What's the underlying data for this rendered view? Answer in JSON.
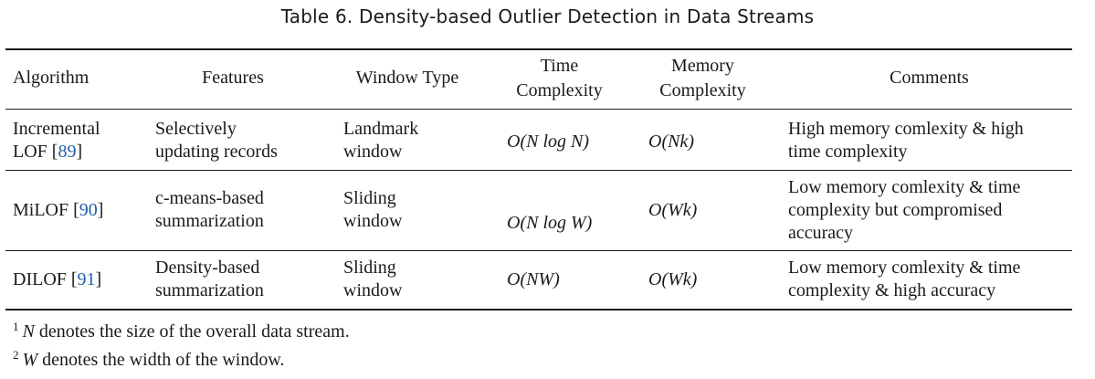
{
  "caption": "Table 6.  Density-based Outlier Detection in Data Streams",
  "headers": {
    "algorithm": "Algorithm",
    "features": "Features",
    "window_type": "Window Type",
    "time_line1": "Time",
    "time_line2": "Complexity",
    "memory_line1": "Memory",
    "memory_line2": "Complexity",
    "comments": "Comments"
  },
  "rows": [
    {
      "algorithm": [
        "Incremental",
        "LOF [",
        "89",
        "]"
      ],
      "features": [
        "Selectively",
        "updating records"
      ],
      "window": [
        "Landmark",
        "window"
      ],
      "time": "O(N log N)",
      "memory": "O(Nk)",
      "comments": [
        "High memory comlexity & high",
        "time complexity"
      ]
    },
    {
      "algorithm": [
        "MiLOF [",
        "90",
        "]"
      ],
      "features": [
        "c-means-based",
        "summarization"
      ],
      "window": [
        "Sliding",
        "window"
      ],
      "time": "O(N log W)",
      "memory": "O(Wk)",
      "comments": [
        "Low memory comlexity & time",
        "complexity but compromised",
        "accuracy"
      ]
    },
    {
      "algorithm": [
        "DILOF [",
        "91",
        "]"
      ],
      "features": [
        "Density-based",
        "summarization"
      ],
      "window": [
        "Sliding",
        "window"
      ],
      "time": "O(NW)",
      "memory": "O(Wk)",
      "comments": [
        "Low memory comlexity & time",
        "complexity & high accuracy"
      ]
    }
  ],
  "footnotes": [
    {
      "mark": "1",
      "symbol": "N",
      "text": " denotes the size of the overall data stream."
    },
    {
      "mark": "2",
      "symbol": "W",
      "text": " denotes the width of the window."
    }
  ]
}
